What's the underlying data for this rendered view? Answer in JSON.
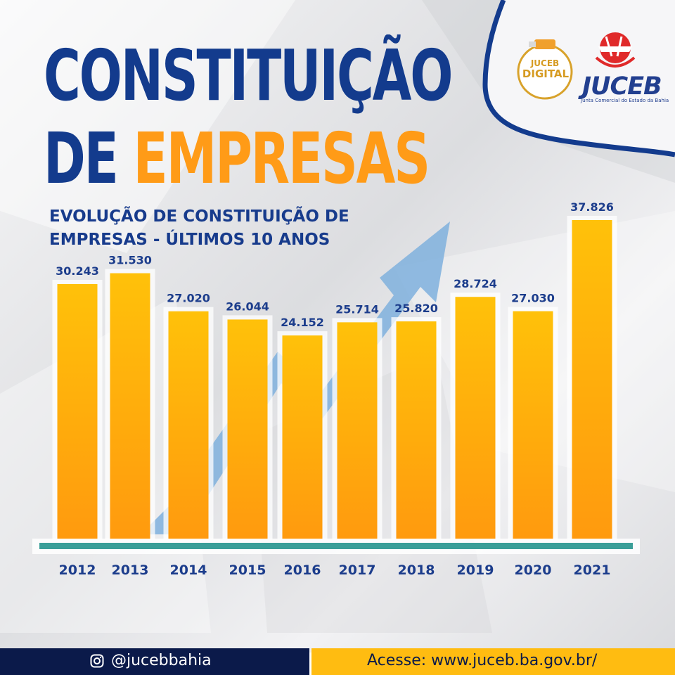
{
  "title": {
    "line1": "CONSTITUIÇÃO",
    "line2_word1": "DE",
    "line2_word2": "EMPRESAS"
  },
  "subtitle": {
    "line1": "EVOLUÇÃO DE CONSTITUIÇÃO  DE",
    "line2": "EMPRESAS - ÚLTIMOS 10 ANOS"
  },
  "logos": {
    "juceb_digital_line1": "JUCEB",
    "juceb_digital_line2": "DIGITAL",
    "juceb": "JUCEB",
    "juceb_subtitle": "Junta Comercial do Estado da Bahia"
  },
  "footer": {
    "instagram": "@jucebbahia",
    "site": "Acesse: www.juceb.ba.gov.br/"
  },
  "colors": {
    "navy": "#133b8d",
    "orange": "#ff9b17",
    "bar_top": "#ffc10a",
    "bar_bottom": "#ff9a0e",
    "baseline": "#3a9e98",
    "footer_dark": "#0b1a4a",
    "footer_yellow": "#ffbc11",
    "arrow": "#7fb0dd"
  },
  "chart_data": {
    "type": "bar",
    "categories": [
      "2012",
      "2013",
      "2014",
      "2015",
      "2016",
      "2017",
      "2018",
      "2019",
      "2020",
      "2021"
    ],
    "values": [
      30243,
      31530,
      27020,
      26044,
      24152,
      25714,
      25820,
      28724,
      27030,
      37826
    ],
    "value_labels": [
      "30.243",
      "31.530",
      "27.020",
      "26.044",
      "24.152",
      "25.714",
      "25.820",
      "28.724",
      "27.030",
      "37.826"
    ],
    "title": "EVOLUÇÃO DE CONSTITUIÇÃO  DE EMPRESAS - ÚLTIMOS 10 ANOS",
    "xlabel": "",
    "ylabel": "",
    "grid": false,
    "legend": "none"
  }
}
